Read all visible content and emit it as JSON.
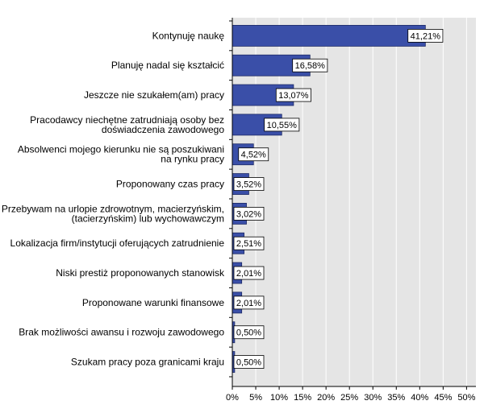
{
  "chart_data": {
    "type": "bar",
    "orientation": "horizontal",
    "categories": [
      [
        "Kontynuję naukę"
      ],
      [
        "Planuję nadal się kształcić"
      ],
      [
        "Jeszcze nie szukałem(am) pracy"
      ],
      [
        "Pracodawcy niechętne zatrudniają osoby bez",
        "doświadczenia zawodowego"
      ],
      [
        "Absolwenci mojego kierunku nie są poszukiwani",
        "na rynku pracy"
      ],
      [
        "Proponowany czas pracy"
      ],
      [
        "Przebywam na urlopie zdrowotnym, macierzyńskim,",
        "(tacierzyńskim) lub wychowawczym"
      ],
      [
        "Lokalizacja firm/instytucji oferujących zatrudnienie"
      ],
      [
        "Niski prestiż proponowanych stanowisk"
      ],
      [
        "Proponowane warunki finansowe"
      ],
      [
        "Brak możliwości awansu i rozwoju zawodowego"
      ],
      [
        "Szukam pracy poza granicami kraju"
      ]
    ],
    "values": [
      41.21,
      16.58,
      13.07,
      10.55,
      4.52,
      3.52,
      3.02,
      2.51,
      2.01,
      2.01,
      0.5,
      0.5
    ],
    "data_labels": [
      "41,21%",
      "16,58%",
      "13,07%",
      "10,55%",
      "4,52%",
      "3,52%",
      "3,02%",
      "2,51%",
      "2,01%",
      "2,01%",
      "0,50%",
      "0,50%"
    ],
    "x_ticks": [
      0,
      5,
      10,
      15,
      20,
      25,
      30,
      35,
      40,
      45,
      50
    ],
    "x_tick_labels": [
      "0%",
      "5%",
      "10%",
      "15%",
      "20%",
      "25%",
      "30%",
      "35%",
      "40%",
      "45%",
      "50%"
    ],
    "xlim": [
      0,
      52
    ],
    "grid": true,
    "bar_color": "#3a4fa8",
    "plot_background": "#e5e5e5",
    "title": "",
    "xlabel": "",
    "ylabel": ""
  }
}
